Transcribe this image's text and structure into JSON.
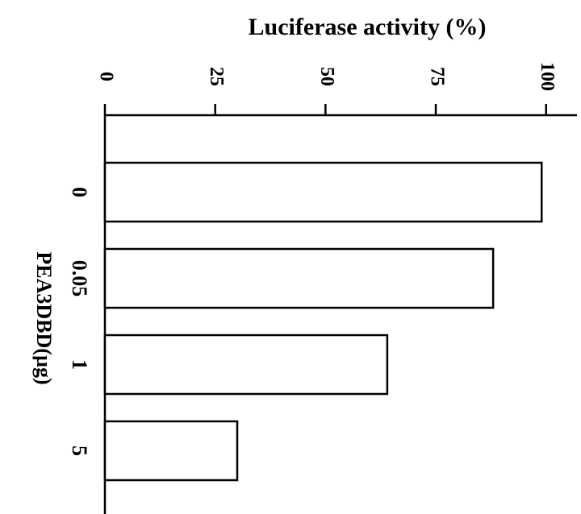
{
  "chart_data": {
    "type": "bar",
    "orientation": "horizontal",
    "title": "Luciferase activity (%)",
    "y_label": "PEA3DBD(µg)",
    "categories": [
      "0",
      "0.05",
      "1",
      "5"
    ],
    "values": [
      99,
      88,
      64,
      30
    ],
    "color": "#ffffff",
    "xlim": [
      0,
      107
    ],
    "xticks": [
      0,
      25,
      50,
      75,
      100
    ],
    "grid": false
  }
}
